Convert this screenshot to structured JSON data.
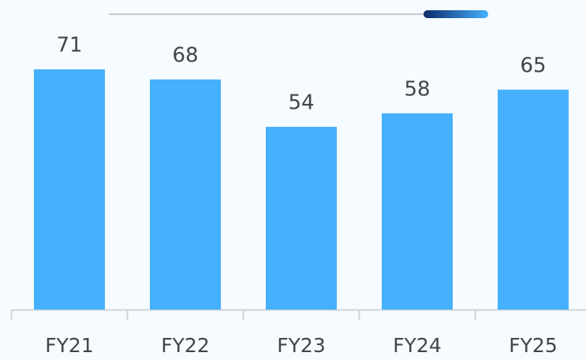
{
  "chart_data": {
    "type": "bar",
    "categories": [
      "FY21",
      "FY22",
      "FY23",
      "FY24",
      "FY25"
    ],
    "values": [
      71,
      68,
      54,
      58,
      65
    ],
    "color": "#45b0fc",
    "ylim": [
      0,
      90
    ]
  }
}
